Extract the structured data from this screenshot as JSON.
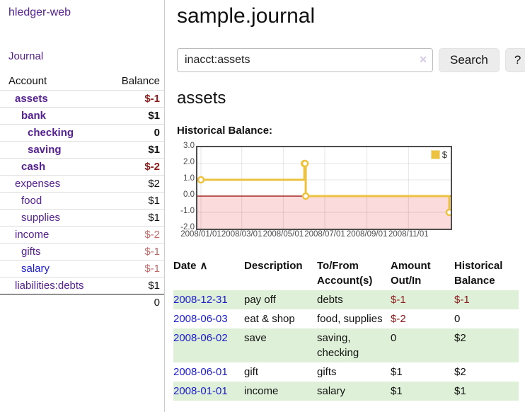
{
  "colors": {
    "link_purple": "#55228f",
    "link_blue": "#1c1ccc",
    "negative_dark": "#8b1a1a",
    "negative_light": "#c16a6a",
    "series_gold": "#edc240",
    "negative_region_pink": "#fbdbdb",
    "zero_line": "#990000",
    "stripe_green": "#dff0d8"
  },
  "sidebar": {
    "brand": "hledger-web",
    "nav_journal": "Journal",
    "header": {
      "account": "Account",
      "balance": "Balance"
    },
    "accounts": [
      {
        "name": "assets",
        "indent": 1,
        "bold": true,
        "balance": "$-1"
      },
      {
        "name": "bank",
        "indent": 2,
        "bold": true,
        "balance": "$1"
      },
      {
        "name": "checking",
        "indent": 3,
        "bold": true,
        "balance": "0"
      },
      {
        "name": "saving",
        "indent": 3,
        "bold": true,
        "balance": "$1"
      },
      {
        "name": "cash",
        "indent": 2,
        "bold": true,
        "balance": "$-2"
      },
      {
        "name": "expenses",
        "indent": 1,
        "bold": false,
        "balance": "$2"
      },
      {
        "name": "food",
        "indent": 2,
        "bold": false,
        "balance": "$1"
      },
      {
        "name": "supplies",
        "indent": 2,
        "bold": false,
        "balance": "$1"
      },
      {
        "name": "income",
        "indent": 1,
        "bold": false,
        "balance": "$-2"
      },
      {
        "name": "gifts",
        "indent": 2,
        "bold": false,
        "balance": "$-1"
      },
      {
        "name": "salary",
        "indent": 2,
        "bold": false,
        "balance": "$-1",
        "blue": true
      },
      {
        "name": "liabilities:debts",
        "indent": 1,
        "bold": false,
        "balance": "$1"
      }
    ],
    "total": "0"
  },
  "main": {
    "title": "sample.journal",
    "search": {
      "value": "inacct:assets",
      "clear_icon": "✕",
      "button": "Search",
      "help": "?"
    },
    "account_heading": "assets",
    "chart_heading": "Historical Balance:"
  },
  "chart_data": {
    "type": "line",
    "step": true,
    "title": "Historical Balance:",
    "x": [
      "2008-01-01",
      "2008-06-01",
      "2008-06-02",
      "2008-06-03",
      "2008-12-31"
    ],
    "series": [
      {
        "name": "$",
        "color": "#edc240",
        "values": [
          1,
          2,
          2,
          0,
          -1
        ]
      }
    ],
    "x_ticks": [
      "2008/01/01",
      "2008/03/01",
      "2008/05/01",
      "2008/07/01",
      "2008/09/01",
      "2008/11/01"
    ],
    "y_ticks": [
      "3.0",
      "2.0",
      "1.0",
      "0.0",
      "-1.0",
      "-2.0"
    ],
    "ylim": [
      -2,
      3
    ],
    "xlim": [
      "2008-01-01",
      "2008-12-31"
    ],
    "grid": true,
    "legend": {
      "label": "$",
      "position": "top-right"
    },
    "negative_region_color": "#fbdbdb",
    "zero_line_color": "#990000"
  },
  "register": {
    "columns": {
      "date": "Date",
      "description": "Description",
      "accounts": "To/From Account(s)",
      "amount": "Amount Out/In",
      "balance": "Historical Balance"
    },
    "sort_icon": "∧",
    "rows": [
      {
        "date": "2008-12-31",
        "description": "pay off",
        "accounts": "debts",
        "amount": "$-1",
        "balance": "$-1"
      },
      {
        "date": "2008-06-03",
        "description": "eat & shop",
        "accounts": "food, supplies",
        "amount": "$-2",
        "balance": "0"
      },
      {
        "date": "2008-06-02",
        "description": "save",
        "accounts": "saving, checking",
        "amount": "0",
        "balance": "$2"
      },
      {
        "date": "2008-06-01",
        "description": "gift",
        "accounts": "gifts",
        "amount": "$1",
        "balance": "$2"
      },
      {
        "date": "2008-01-01",
        "description": "income",
        "accounts": "salary",
        "amount": "$1",
        "balance": "$1"
      }
    ]
  }
}
